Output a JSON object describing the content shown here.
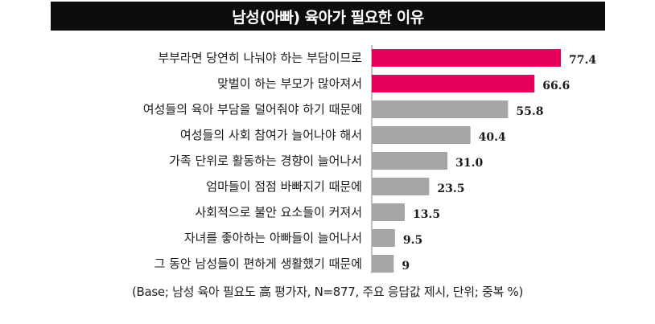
{
  "colors": {
    "title_bg": "#0d0d0d",
    "highlight": "#e6005c",
    "default": "#a6a6a6",
    "axis": "#7f7f7f",
    "label": "#1a1a1a"
  },
  "chart_data": {
    "type": "bar",
    "orientation": "horizontal",
    "title": "남성(아빠) 육아가 필요한 이유",
    "categories": [
      "부부라면 당연히 나눠야 하는 부담이므로",
      "맞벌이 하는 부모가 많아져서",
      "여성들의 육아 부담을 덜어줘야 하기 때문에",
      "여성들의 사회 참여가 늘어나야 해서",
      "가족 단위로 활동하는 경향이 늘어나서",
      "엄마들이 점점 바빠지기 때문에",
      "사회적으로 불안 요소들이 커져서",
      "자녀를 좋아하는 아빠들이 늘어나서",
      "그 동안 남성들이 편하게 생활했기 때문에"
    ],
    "values": [
      77.4,
      66.6,
      55.8,
      40.4,
      31.0,
      23.5,
      13.5,
      9.5,
      9
    ],
    "value_labels": [
      "77.4",
      "66.6",
      "55.8",
      "40.4",
      "31.0",
      "23.5",
      "13.5",
      "9.5",
      "9"
    ],
    "highlighted": [
      true,
      true,
      false,
      false,
      false,
      false,
      false,
      false,
      false
    ],
    "xlim": [
      0,
      100
    ],
    "legend": "none",
    "grid": false,
    "note": "(Base; 남성 육아 필요도 高 평가자, N=877, 주요 응답값 제시, 단위; 중복 %)"
  }
}
